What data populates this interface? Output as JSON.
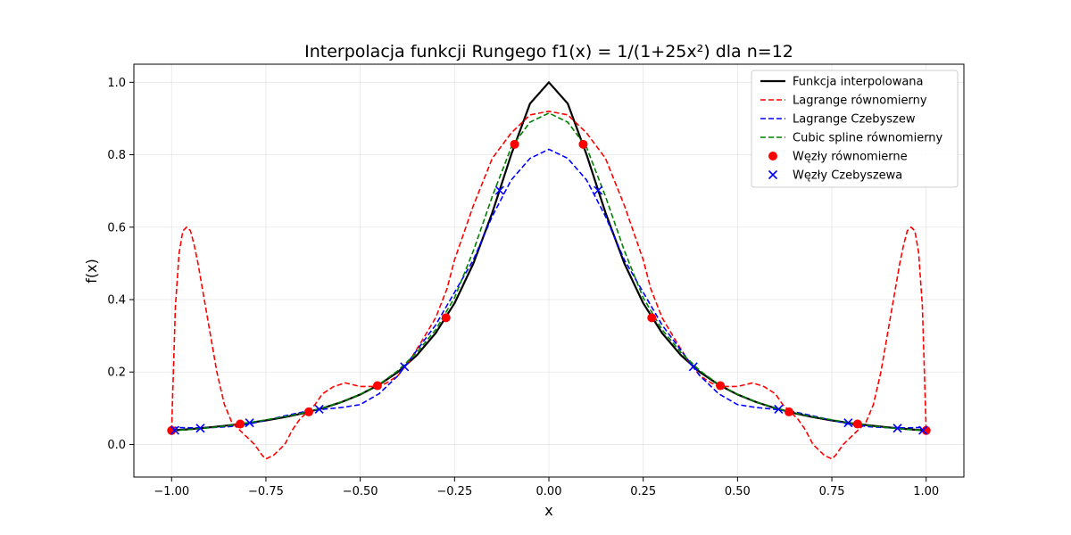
{
  "chart_data": {
    "type": "line",
    "title": "Interpolacja funkcji Rungego f1(x) = 1/(1+25x²) dla n=12",
    "xlabel": "x",
    "ylabel": "f(x)",
    "xlim": [
      -1.1,
      1.1
    ],
    "ylim": [
      -0.09,
      1.05
    ],
    "xticks": [
      -1.0,
      -0.75,
      -0.5,
      -0.25,
      0.0,
      0.25,
      0.5,
      0.75,
      1.0
    ],
    "xtick_labels": [
      "−1.00",
      "−0.75",
      "−0.50",
      "−0.25",
      "0.00",
      "0.25",
      "0.50",
      "0.75",
      "1.00"
    ],
    "yticks": [
      0.0,
      0.2,
      0.4,
      0.6,
      0.8,
      1.0
    ],
    "ytick_labels": [
      "0.0",
      "0.2",
      "0.4",
      "0.6",
      "0.8",
      "1.0"
    ],
    "grid": true,
    "legend_position": "top-right",
    "series": [
      {
        "name": "Funkcja interpolowana",
        "kind": "line",
        "color": "#000000",
        "dash": "solid",
        "x": [
          -1.0,
          -0.95,
          -0.9,
          -0.85,
          -0.8,
          -0.75,
          -0.7,
          -0.65,
          -0.6,
          -0.55,
          -0.5,
          -0.45,
          -0.4,
          -0.35,
          -0.3,
          -0.25,
          -0.2,
          -0.15,
          -0.1,
          -0.05,
          0.0,
          0.05,
          0.1,
          0.15,
          0.2,
          0.25,
          0.3,
          0.35,
          0.4,
          0.45,
          0.5,
          0.55,
          0.6,
          0.65,
          0.7,
          0.75,
          0.8,
          0.85,
          0.9,
          0.95,
          1.0
        ],
        "y": [
          0.0385,
          0.0424,
          0.0471,
          0.0525,
          0.0588,
          0.0664,
          0.0755,
          0.0865,
          0.1,
          0.1168,
          0.1379,
          0.1649,
          0.2,
          0.2462,
          0.3077,
          0.3902,
          0.5,
          0.64,
          0.8,
          0.9412,
          1.0,
          0.9412,
          0.8,
          0.64,
          0.5,
          0.3902,
          0.3077,
          0.2462,
          0.2,
          0.1649,
          0.1379,
          0.1168,
          0.1,
          0.0865,
          0.0755,
          0.0664,
          0.0588,
          0.0525,
          0.0471,
          0.0424,
          0.0385
        ]
      },
      {
        "name": "Lagrange równomierny",
        "kind": "line",
        "color": "#ff0000",
        "dash": "dashed",
        "x": [
          -1.0,
          -0.99,
          -0.98,
          -0.97,
          -0.96,
          -0.95,
          -0.94,
          -0.93,
          -0.92,
          -0.9,
          -0.88,
          -0.86,
          -0.84,
          -0.82,
          -0.8,
          -0.78,
          -0.76,
          -0.75,
          -0.73,
          -0.7,
          -0.68,
          -0.66,
          -0.64,
          -0.62,
          -0.6,
          -0.57,
          -0.54,
          -0.5,
          -0.47,
          -0.45,
          -0.43,
          -0.4,
          -0.37,
          -0.34,
          -0.3,
          -0.27,
          -0.25,
          -0.2,
          -0.15,
          -0.1,
          -0.05,
          0.0,
          0.05,
          0.1,
          0.15,
          0.2,
          0.25,
          0.27,
          0.3,
          0.34,
          0.37,
          0.4,
          0.43,
          0.45,
          0.47,
          0.5,
          0.54,
          0.57,
          0.6,
          0.62,
          0.64,
          0.66,
          0.68,
          0.7,
          0.73,
          0.75,
          0.76,
          0.78,
          0.8,
          0.82,
          0.84,
          0.86,
          0.88,
          0.9,
          0.92,
          0.93,
          0.94,
          0.95,
          0.96,
          0.97,
          0.98,
          0.99,
          1.0
        ],
        "y": [
          0.0385,
          0.38,
          0.53,
          0.59,
          0.6,
          0.59,
          0.55,
          0.5,
          0.44,
          0.32,
          0.2,
          0.11,
          0.06,
          0.04,
          0.02,
          0.0,
          -0.03,
          -0.04,
          -0.03,
          0.0,
          0.04,
          0.07,
          0.09,
          0.11,
          0.14,
          0.16,
          0.17,
          0.16,
          0.16,
          0.16,
          0.17,
          0.19,
          0.23,
          0.28,
          0.35,
          0.43,
          0.51,
          0.66,
          0.79,
          0.86,
          0.91,
          0.92,
          0.91,
          0.86,
          0.79,
          0.66,
          0.51,
          0.43,
          0.35,
          0.28,
          0.23,
          0.19,
          0.17,
          0.16,
          0.16,
          0.16,
          0.17,
          0.16,
          0.14,
          0.11,
          0.09,
          0.07,
          0.04,
          0.0,
          -0.03,
          -0.04,
          -0.03,
          0.0,
          0.02,
          0.04,
          0.06,
          0.11,
          0.2,
          0.32,
          0.44,
          0.5,
          0.55,
          0.59,
          0.6,
          0.59,
          0.53,
          0.38,
          0.0385
        ]
      },
      {
        "name": "Lagrange Czebyszew",
        "kind": "line",
        "color": "#0000ff",
        "dash": "dashed",
        "x": [
          -1.0,
          -0.95,
          -0.9,
          -0.85,
          -0.8,
          -0.75,
          -0.7,
          -0.65,
          -0.6,
          -0.55,
          -0.5,
          -0.45,
          -0.4,
          -0.35,
          -0.3,
          -0.25,
          -0.2,
          -0.15,
          -0.1,
          -0.05,
          0.0,
          0.05,
          0.1,
          0.15,
          0.2,
          0.25,
          0.3,
          0.35,
          0.4,
          0.45,
          0.5,
          0.55,
          0.6,
          0.65,
          0.7,
          0.75,
          0.8,
          0.85,
          0.9,
          0.95,
          1.0
        ],
        "y": [
          0.047,
          0.046,
          0.046,
          0.049,
          0.055,
          0.067,
          0.079,
          0.09,
          0.097,
          0.102,
          0.11,
          0.14,
          0.19,
          0.26,
          0.33,
          0.42,
          0.51,
          0.63,
          0.73,
          0.79,
          0.815,
          0.79,
          0.73,
          0.63,
          0.51,
          0.42,
          0.33,
          0.26,
          0.19,
          0.14,
          0.11,
          0.102,
          0.097,
          0.09,
          0.079,
          0.067,
          0.055,
          0.049,
          0.046,
          0.046,
          0.047
        ]
      },
      {
        "name": "Cubic spline równomierny",
        "kind": "line",
        "color": "#008000",
        "dash": "dashed",
        "x": [
          -1.0,
          -0.95,
          -0.9,
          -0.85,
          -0.8,
          -0.75,
          -0.7,
          -0.65,
          -0.6,
          -0.55,
          -0.5,
          -0.45,
          -0.4,
          -0.35,
          -0.3,
          -0.25,
          -0.2,
          -0.15,
          -0.1,
          -0.05,
          0.0,
          0.05,
          0.1,
          0.15,
          0.2,
          0.25,
          0.3,
          0.35,
          0.4,
          0.45,
          0.5,
          0.55,
          0.6,
          0.65,
          0.7,
          0.75,
          0.8,
          0.85,
          0.9,
          0.95,
          1.0
        ],
        "y": [
          0.0385,
          0.0415,
          0.046,
          0.052,
          0.0595,
          0.068,
          0.0765,
          0.0875,
          0.1005,
          0.117,
          0.1385,
          0.1655,
          0.204,
          0.254,
          0.317,
          0.405,
          0.535,
          0.685,
          0.82,
          0.89,
          0.915,
          0.89,
          0.82,
          0.685,
          0.535,
          0.405,
          0.317,
          0.254,
          0.204,
          0.1655,
          0.1385,
          0.117,
          0.1005,
          0.0875,
          0.0765,
          0.068,
          0.0595,
          0.052,
          0.046,
          0.0415,
          0.0385
        ]
      },
      {
        "name": "Węzły równomierne",
        "kind": "scatter",
        "marker": "circle",
        "color": "#ff0000",
        "x": [
          -1.0,
          -0.8182,
          -0.6364,
          -0.4545,
          -0.2727,
          -0.0909,
          0.0909,
          0.2727,
          0.4545,
          0.6364,
          0.8182,
          1.0
        ],
        "y": [
          0.0385,
          0.0564,
          0.0899,
          0.1623,
          0.3498,
          0.8288,
          0.8288,
          0.3498,
          0.1623,
          0.0899,
          0.0564,
          0.0385
        ]
      },
      {
        "name": "Węzły Czebyszewa",
        "kind": "scatter",
        "marker": "x",
        "color": "#0000ff",
        "x": [
          -0.9914,
          -0.9239,
          -0.7934,
          -0.6088,
          -0.3827,
          -0.1305,
          0.1305,
          0.3827,
          0.6088,
          0.7934,
          0.9239,
          0.9914
        ],
        "y": [
          0.0391,
          0.0448,
          0.0598,
          0.0974,
          0.2145,
          0.7013,
          0.7013,
          0.2145,
          0.0974,
          0.0598,
          0.0448,
          0.0391
        ]
      }
    ]
  }
}
